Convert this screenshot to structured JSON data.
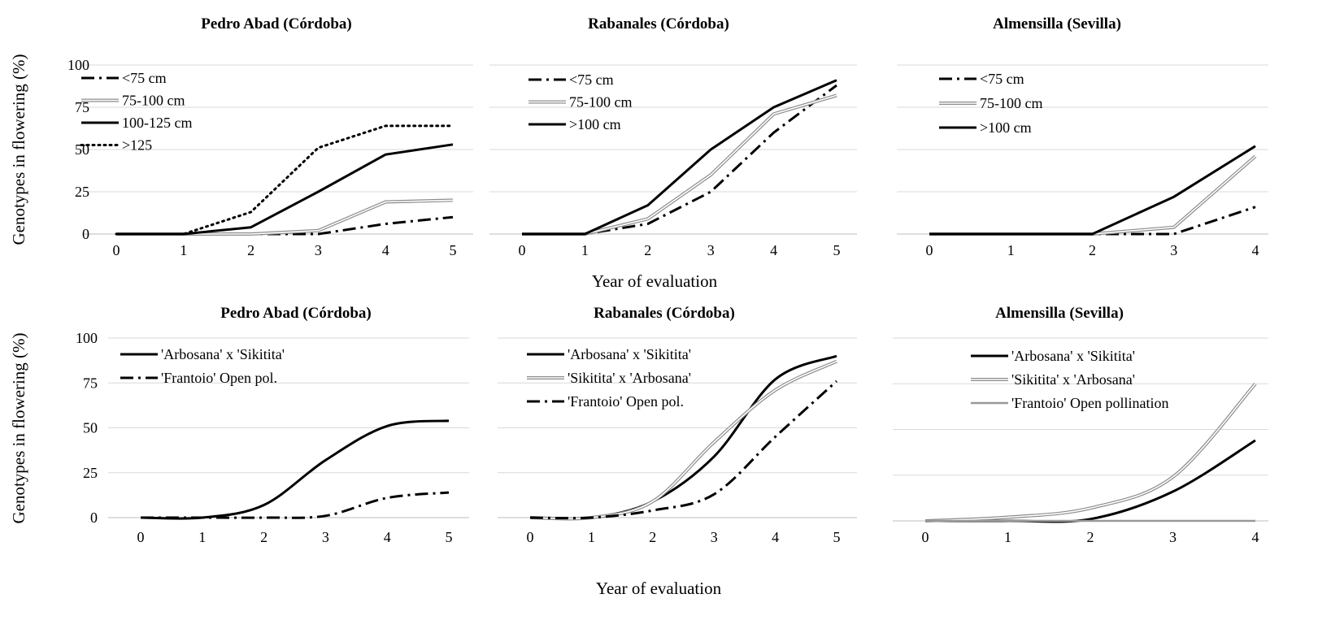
{
  "figure": {
    "ylabel_top": "Genotypes in flowering (%)",
    "ylabel_bottom": "Genotypes in flowering (%)",
    "xlabel_top": "Year of evaluation",
    "xlabel_bottom": "Year of evaluation"
  },
  "chart_data": [
    {
      "id": "p1",
      "type": "line",
      "smooth": false,
      "title": "Pedro Abad (Córdoba)",
      "xlabel": "",
      "ylabel": "Genotypes in flowering (%)",
      "x": [
        0,
        1,
        2,
        3,
        4,
        5
      ],
      "xlim": [
        0,
        5
      ],
      "ylim": [
        0,
        100
      ],
      "yticks": [
        0,
        25,
        50,
        75,
        100
      ],
      "grid": true,
      "legend_position": "top-left",
      "series": [
        {
          "name": "<75 cm",
          "style": "dashdot",
          "values": [
            0,
            0,
            0,
            0,
            6,
            10
          ]
        },
        {
          "name": "75-100 cm",
          "style": "hollow",
          "values": [
            0,
            0,
            0,
            2,
            19,
            20
          ]
        },
        {
          "name": "100-125 cm",
          "style": "solid",
          "values": [
            0,
            0,
            4,
            25,
            47,
            53
          ]
        },
        {
          "name": ">125",
          "style": "dotted",
          "values": [
            0,
            0,
            13,
            51,
            64,
            64
          ]
        }
      ]
    },
    {
      "id": "p2",
      "type": "line",
      "smooth": false,
      "title": "Rabanales (Córdoba)",
      "xlabel": "Year of evaluation",
      "ylabel": "",
      "x": [
        0,
        1,
        2,
        3,
        4,
        5
      ],
      "xlim": [
        0,
        5
      ],
      "ylim": [
        0,
        100
      ],
      "yticks": [
        0,
        25,
        50,
        75,
        100
      ],
      "grid": true,
      "legend_position": "top-left",
      "series": [
        {
          "name": "<75 cm",
          "style": "dashdot",
          "values": [
            0,
            0,
            6,
            25,
            60,
            88
          ]
        },
        {
          "name": "75-100 cm",
          "style": "hollow",
          "values": [
            0,
            0,
            9,
            35,
            71,
            82
          ]
        },
        {
          "name": ">100 cm",
          "style": "solid",
          "values": [
            0,
            0,
            17,
            50,
            75,
            91
          ]
        }
      ]
    },
    {
      "id": "p3",
      "type": "line",
      "smooth": false,
      "title": "Almensilla (Sevilla)",
      "xlabel": "",
      "ylabel": "",
      "x": [
        0,
        1,
        2,
        3,
        4
      ],
      "xlim": [
        0,
        4
      ],
      "ylim": [
        0,
        100
      ],
      "yticks": [
        0,
        25,
        50,
        75,
        100
      ],
      "grid": true,
      "legend_position": "top-left",
      "series": [
        {
          "name": "<75 cm",
          "style": "dashdot",
          "values": [
            0,
            0,
            0,
            0,
            16
          ]
        },
        {
          "name": "75-100 cm",
          "style": "hollow",
          "values": [
            0,
            0,
            0,
            4,
            46
          ]
        },
        {
          "name": ">100 cm",
          "style": "solid",
          "values": [
            0,
            0,
            0,
            22,
            52
          ]
        }
      ]
    },
    {
      "id": "p4",
      "type": "line",
      "smooth": true,
      "title": "Pedro Abad (Córdoba)",
      "xlabel": "",
      "ylabel": "Genotypes in flowering (%)",
      "x": [
        0,
        1,
        2,
        3,
        4,
        5
      ],
      "xlim": [
        0,
        5
      ],
      "ylim": [
        0,
        100
      ],
      "yticks": [
        0,
        25,
        50,
        75,
        100
      ],
      "grid": true,
      "legend_position": "top-left",
      "series": [
        {
          "name": "'Arbosana' x 'Sikitita'",
          "style": "solid",
          "values": [
            0,
            0,
            7,
            32,
            51,
            54
          ]
        },
        {
          "name": "'Frantoio' Open pol.",
          "style": "dashdot",
          "values": [
            0,
            0,
            0,
            1,
            11,
            14
          ]
        }
      ]
    },
    {
      "id": "p5",
      "type": "line",
      "smooth": true,
      "title": "Rabanales (Córdoba)",
      "xlabel": "Year of evaluation",
      "ylabel": "",
      "x": [
        0,
        1,
        2,
        3,
        4,
        5
      ],
      "xlim": [
        0,
        5
      ],
      "ylim": [
        0,
        100
      ],
      "yticks": [
        0,
        25,
        50,
        75,
        100
      ],
      "grid": true,
      "legend_position": "top-left",
      "series": [
        {
          "name": "'Arbosana' x 'Sikitita'",
          "style": "solid",
          "values": [
            0,
            0,
            9,
            34,
            77,
            90
          ]
        },
        {
          "name": "'Sikitita' x 'Arbosana'",
          "style": "hollow",
          "values": [
            0,
            0,
            9,
            42,
            71,
            87
          ]
        },
        {
          "name": "'Frantoio' Open pol.",
          "style": "dashdot",
          "values": [
            0,
            0,
            4,
            13,
            45,
            76
          ]
        }
      ]
    },
    {
      "id": "p6",
      "type": "line",
      "smooth": true,
      "title": "Almensilla (Sevilla)",
      "xlabel": "",
      "ylabel": "",
      "x": [
        0,
        1,
        2,
        3,
        4
      ],
      "xlim": [
        0,
        4
      ],
      "ylim": [
        0,
        100
      ],
      "yticks": [
        0,
        25,
        50,
        75,
        100
      ],
      "grid": true,
      "legend_position": "top-left",
      "series": [
        {
          "name": "'Arbosana' x 'Sikitita'",
          "style": "solid",
          "values": [
            0,
            0,
            1,
            16,
            44
          ]
        },
        {
          "name": "'Sikitita' x 'Arbosana'",
          "style": "hollow",
          "values": [
            0,
            2,
            7,
            24,
            75
          ]
        },
        {
          "name": "'Frantoio' Open pollination",
          "style": "grey",
          "values": [
            0,
            0,
            0,
            0,
            0
          ]
        }
      ]
    }
  ]
}
